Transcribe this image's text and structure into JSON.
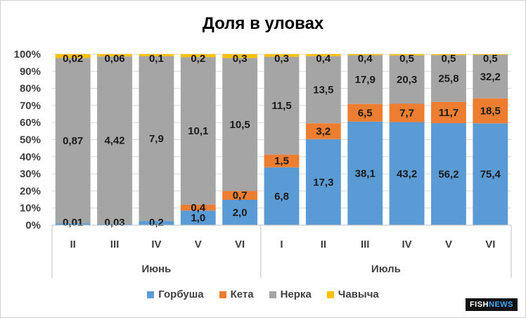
{
  "chart_data": {
    "type": "bar",
    "stacked": "percent",
    "title": "Доля в уловах",
    "grid": true,
    "legend_position": "bottom",
    "y_ticks": [
      "0%",
      "10%",
      "20%",
      "30%",
      "40%",
      "50%",
      "60%",
      "70%",
      "80%",
      "90%",
      "100%"
    ],
    "ylim": [
      0,
      100
    ],
    "categories": [
      "II",
      "III",
      "IV",
      "V",
      "VI",
      "I",
      "II",
      "III",
      "IV",
      "V",
      "VI"
    ],
    "groups": [
      {
        "label": "Июнь",
        "count": 5
      },
      {
        "label": "Июль",
        "count": 6
      }
    ],
    "series": [
      {
        "name": "Горбуша",
        "color": "#5b9bd5",
        "labels": [
          "0,01",
          "0,03",
          "0,2",
          "1,0",
          "2,0",
          "6,8",
          "17,3",
          "38,1",
          "43,2",
          "56,2",
          "75,4"
        ],
        "values": [
          0.01,
          0.03,
          0.2,
          1.0,
          2.0,
          6.8,
          17.3,
          38.1,
          43.2,
          56.2,
          75.4
        ]
      },
      {
        "name": "Кета",
        "color": "#ed7d31",
        "labels": [
          "",
          "",
          "",
          "0,4",
          "0,7",
          "1,5",
          "3,2",
          "6,5",
          "7,7",
          "11,7",
          "18,5"
        ],
        "values": [
          0,
          0,
          0,
          0.4,
          0.7,
          1.5,
          3.2,
          6.5,
          7.7,
          11.7,
          18.5
        ]
      },
      {
        "name": "Нерка",
        "color": "#a5a5a5",
        "labels": [
          "0,87",
          "4,42",
          "7,9",
          "10,1",
          "10,5",
          "11,5",
          "13,5",
          "17,9",
          "20,3",
          "25,8",
          "32,2"
        ],
        "values": [
          0.87,
          4.42,
          7.9,
          10.1,
          10.5,
          11.5,
          13.5,
          17.9,
          20.3,
          25.8,
          32.2
        ]
      },
      {
        "name": "Чавыча",
        "color": "#ffc000",
        "labels": [
          "0,02",
          "0,06",
          "0,1",
          "0,2",
          "0,3",
          "0,3",
          "0,4",
          "0,4",
          "0,5",
          "0,5",
          "0,5"
        ],
        "values": [
          0.02,
          0.06,
          0.1,
          0.2,
          0.3,
          0.3,
          0.4,
          0.4,
          0.5,
          0.5,
          0.5
        ]
      }
    ]
  },
  "watermark": {
    "part1": "FISH",
    "part2": "NEWS"
  }
}
